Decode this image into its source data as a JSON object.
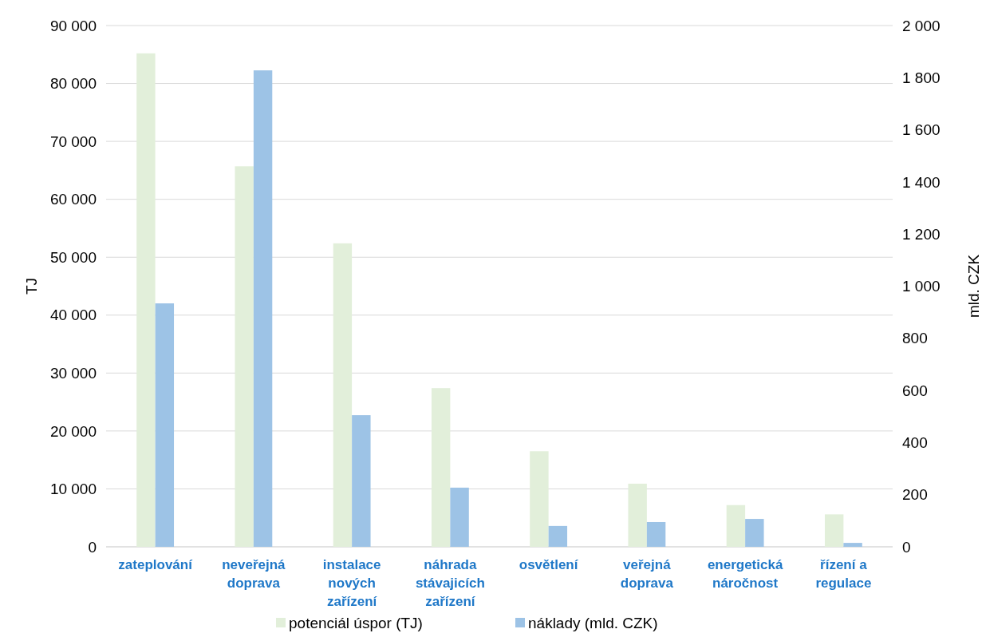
{
  "chart_data": {
    "type": "bar",
    "ylabel": "TJ",
    "y2label": "mld. CZK",
    "categories": [
      "zateplování",
      "neveřejná doprava",
      "instalace nových zařízení",
      "náhrada stávajicích zařízení",
      "osvětlení",
      "veřejná doprava",
      "energetická náročnost",
      "řízení a regulace"
    ],
    "series": [
      {
        "name": "potenciál úspor (TJ)",
        "color": "#e2efda",
        "values": [
          85200,
          65700,
          52400,
          27400,
          16500,
          10900,
          7200,
          5600
        ]
      },
      {
        "name": "náklady (mld. CZK)",
        "color": "#9dc3e6",
        "axis": "y2",
        "values": [
          934,
          1828,
          505,
          227,
          80,
          95,
          107,
          15
        ]
      }
    ],
    "ylim": [
      0,
      90000
    ],
    "yticks": [
      {
        "value": 0,
        "label": "0"
      },
      {
        "value": 10000,
        "label": "10 000"
      },
      {
        "value": 20000,
        "label": "20 000"
      },
      {
        "value": 30000,
        "label": "30 000"
      },
      {
        "value": 40000,
        "label": "40 000"
      },
      {
        "value": 50000,
        "label": "50 000"
      },
      {
        "value": 60000,
        "label": "60 000"
      },
      {
        "value": 70000,
        "label": "70 000"
      },
      {
        "value": 80000,
        "label": "80 000"
      },
      {
        "value": 90000,
        "label": "90 000"
      }
    ],
    "y2lim": [
      0,
      2000
    ],
    "y2ticks": [
      {
        "value": 0,
        "label": "0"
      },
      {
        "value": 200,
        "label": "200"
      },
      {
        "value": 400,
        "label": "400"
      },
      {
        "value": 600,
        "label": "600"
      },
      {
        "value": 800,
        "label": "800"
      },
      {
        "value": 1000,
        "label": "1 000"
      },
      {
        "value": 1200,
        "label": "1 200"
      },
      {
        "value": 1400,
        "label": "1 400"
      },
      {
        "value": 1600,
        "label": "1 600"
      },
      {
        "value": 1800,
        "label": "1 800"
      },
      {
        "value": 2000,
        "label": "2 000"
      }
    ],
    "grid": "y",
    "legend": "bottom"
  }
}
